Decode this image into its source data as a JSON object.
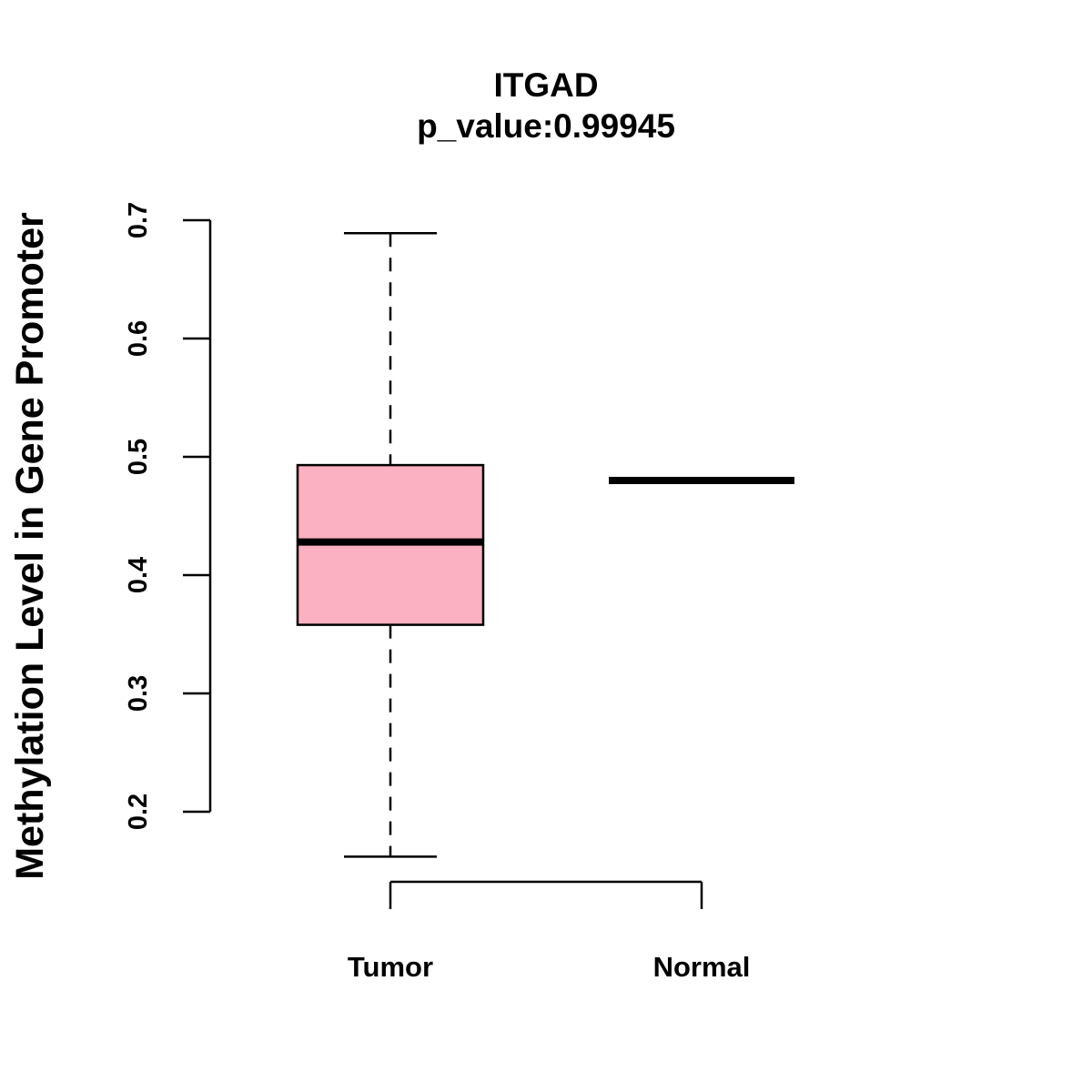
{
  "chart_data": {
    "type": "boxplot",
    "title": "ITGAD",
    "subtitle": "p_value:0.99945",
    "xlabel": "",
    "ylabel": "Methylation Level in Gene Promoter",
    "ylim": [
      0.2,
      0.7
    ],
    "yticks": [
      0.2,
      0.3,
      0.4,
      0.5,
      0.6,
      0.7
    ],
    "ytick_labels": [
      "0.2",
      "0.3",
      "0.4",
      "0.5",
      "0.6",
      "0.7"
    ],
    "categories": [
      "Tumor",
      "Normal"
    ],
    "boxes": [
      {
        "name": "Tumor",
        "whisker_low": 0.162,
        "q1": 0.358,
        "median": 0.428,
        "q3": 0.493,
        "whisker_high": 0.689,
        "fill": "#FBB1C1"
      },
      {
        "name": "Normal",
        "whisker_low": 0.48,
        "q1": 0.48,
        "median": 0.48,
        "q3": 0.48,
        "whisker_high": 0.48,
        "fill": "#FBB1C1"
      }
    ],
    "grid": false,
    "legend": "none"
  }
}
